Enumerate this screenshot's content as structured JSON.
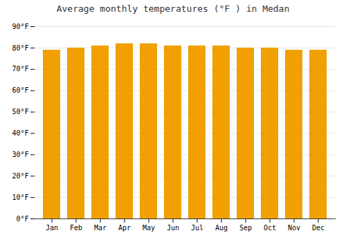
{
  "chart_data": {
    "type": "bar",
    "title": "Average monthly temperatures (°F ) in Medan",
    "categories": [
      "Jan",
      "Feb",
      "Mar",
      "Apr",
      "May",
      "Jun",
      "Jul",
      "Aug",
      "Sep",
      "Oct",
      "Nov",
      "Dec"
    ],
    "values": [
      79,
      80,
      81,
      82,
      82,
      81,
      81,
      81,
      80,
      80,
      79,
      79
    ],
    "color": "#F0A000",
    "ylim": [
      0,
      90
    ],
    "yticks": [
      {
        "value": 0,
        "label": "0°F"
      },
      {
        "value": 10,
        "label": "10°F"
      },
      {
        "value": 20,
        "label": "20°F"
      },
      {
        "value": 30,
        "label": "30°F"
      },
      {
        "value": 40,
        "label": "40°F"
      },
      {
        "value": 50,
        "label": "50°F"
      },
      {
        "value": 60,
        "label": "60°F"
      },
      {
        "value": 70,
        "label": "70°F"
      },
      {
        "value": 80,
        "label": "80°F"
      },
      {
        "value": 90,
        "label": "90°F"
      }
    ],
    "grid": true
  }
}
